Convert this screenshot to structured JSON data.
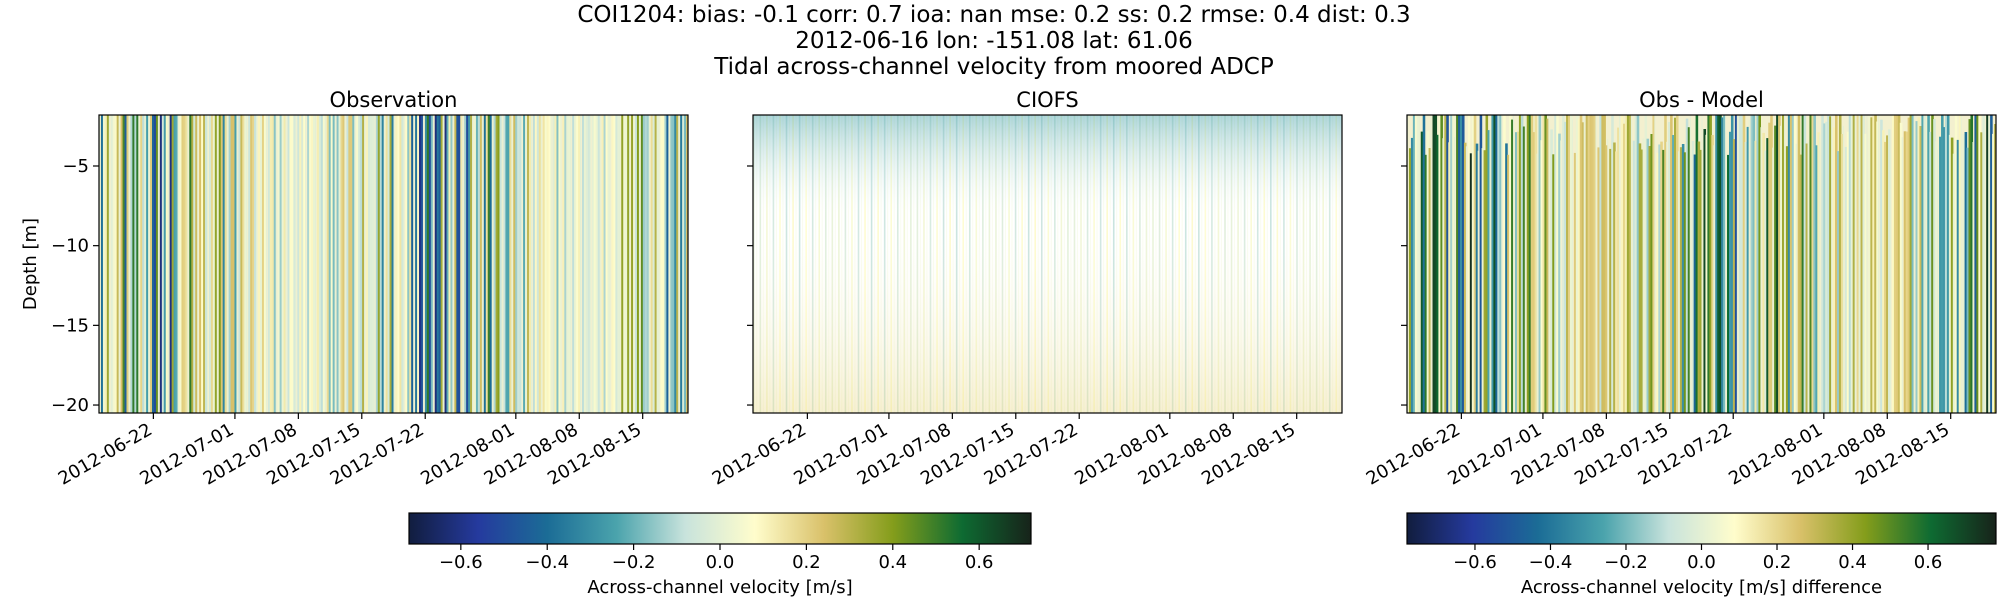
{
  "figure": {
    "title_lines": [
      "COI1204: bias: -0.1  corr: 0.7  ioa: nan  mse: 0.2  ss: 0.2  rmse: 0.4  dist: 0.3",
      "2012-06-16 lon: -151.08 lat: 61.06",
      "Tidal across-channel velocity from moored ADCP"
    ]
  },
  "chart_data": [
    {
      "type": "heatmap",
      "title": "Observation",
      "ylabel": "Depth [m]",
      "xlim": [
        "2012-06-16",
        "2012-08-20"
      ],
      "ylim": [
        -20.5,
        -1.8
      ],
      "xticks": [
        "2012-06-22",
        "2012-07-01",
        "2012-07-08",
        "2012-07-15",
        "2012-07-22",
        "2012-08-01",
        "2012-08-08",
        "2012-08-15"
      ],
      "yticks": [
        -5,
        -10,
        -15,
        -20
      ],
      "ytick_labels": [
        "−5",
        "−10",
        "−15",
        "−20"
      ],
      "value_range": [
        -0.72,
        0.72
      ],
      "pattern": "obs"
    },
    {
      "type": "heatmap",
      "title": "CIOFS",
      "ylabel": "",
      "xlim": [
        "2012-06-16",
        "2012-08-20"
      ],
      "ylim": [
        -20.5,
        -1.8
      ],
      "xticks": [
        "2012-06-22",
        "2012-07-01",
        "2012-07-08",
        "2012-07-15",
        "2012-07-22",
        "2012-08-01",
        "2012-08-08",
        "2012-08-15"
      ],
      "yticks": [
        -5,
        -10,
        -15,
        -20
      ],
      "ytick_labels": [],
      "value_range": [
        -0.72,
        0.72
      ],
      "pattern": "model"
    },
    {
      "type": "heatmap",
      "title": "Obs - Model",
      "ylabel": "",
      "xlim": [
        "2012-06-16",
        "2012-08-20"
      ],
      "ylim": [
        -20.5,
        -1.8
      ],
      "xticks": [
        "2012-06-22",
        "2012-07-01",
        "2012-07-08",
        "2012-07-15",
        "2012-07-22",
        "2012-08-01",
        "2012-08-08",
        "2012-08-15"
      ],
      "yticks": [
        -5,
        -10,
        -15,
        -20
      ],
      "ytick_labels": [],
      "value_range": [
        -0.78,
        0.78
      ],
      "pattern": "diff"
    }
  ],
  "colorbars": [
    {
      "label": "Across-channel velocity [m/s]",
      "range": [
        -0.72,
        0.72
      ],
      "ticks": [
        -0.6,
        -0.4,
        -0.2,
        0.0,
        0.2,
        0.4,
        0.6
      ],
      "tick_labels": [
        "−0.6",
        "−0.4",
        "−0.2",
        "0.0",
        "0.2",
        "0.4",
        "0.6"
      ]
    },
    {
      "label": "Across-channel velocity [m/s] difference",
      "range": [
        -0.78,
        0.78
      ],
      "ticks": [
        -0.6,
        -0.4,
        -0.2,
        0.0,
        0.2,
        0.4,
        0.6
      ],
      "tick_labels": [
        "−0.6",
        "−0.4",
        "−0.2",
        "0.0",
        "0.2",
        "0.4",
        "0.6"
      ]
    }
  ],
  "colormap": {
    "name": "delta",
    "stops": [
      "#111d3e",
      "#253a9e",
      "#1b6c96",
      "#4aa3ac",
      "#c8e3dc",
      "#fffdcc",
      "#d9c16a",
      "#849d1b",
      "#0e6b32",
      "#17231a"
    ]
  }
}
